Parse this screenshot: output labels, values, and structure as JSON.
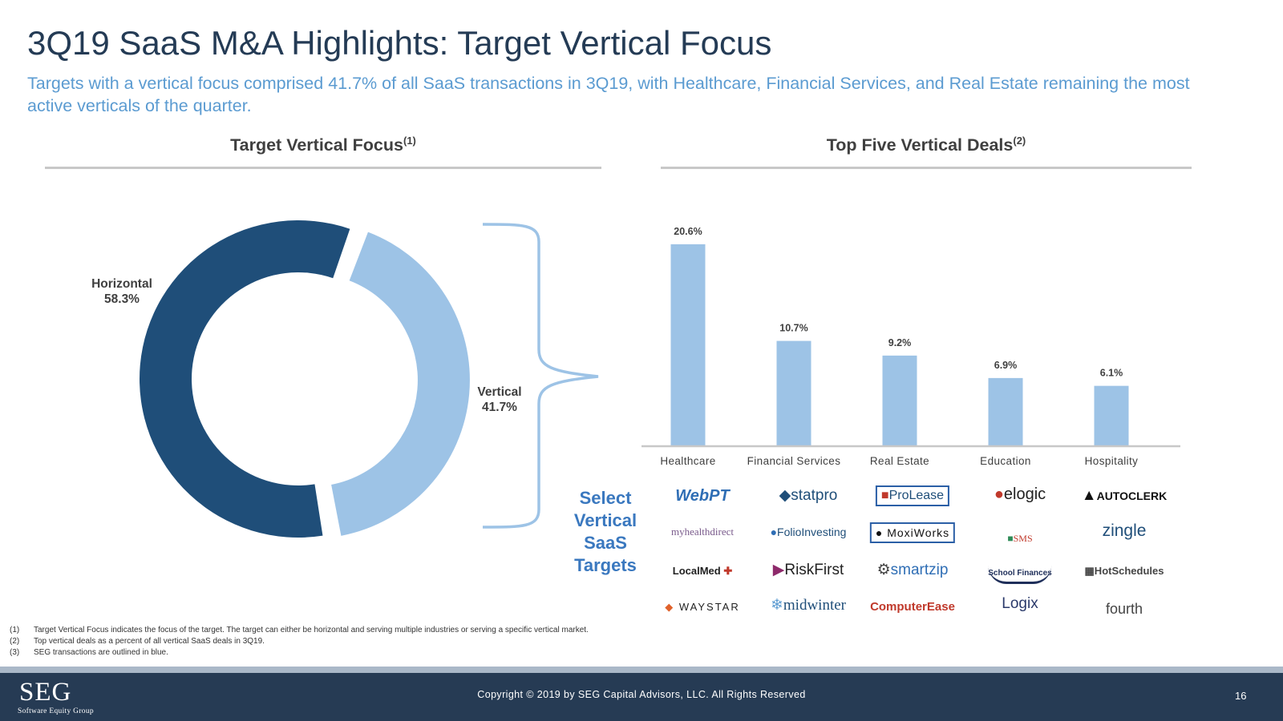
{
  "header": {
    "title": "3Q19 SaaS M&A Highlights: Target Vertical Focus",
    "subtitle": "Targets with a vertical focus comprised 41.7% of all SaaS transactions in 3Q19, with Healthcare, Financial Services, and Real Estate remaining the most active verticals of the quarter."
  },
  "left_section": {
    "title": "Target Vertical Focus",
    "sup": "(1)"
  },
  "right_section": {
    "title": "Top Five Vertical Deals",
    "sup": "(2)"
  },
  "colors": {
    "horizontal": "#1f4e79",
    "vertical": "#9dc3e6",
    "bar": "#9dc3e6",
    "accent": "#3a78bf",
    "footer": "#263b54"
  },
  "chart_data": [
    {
      "type": "pie",
      "variant": "donut",
      "title": "Target Vertical Focus",
      "labels": [
        "Horizontal",
        "Vertical"
      ],
      "values": [
        58.3,
        41.7
      ],
      "value_labels": [
        "58.3%",
        "41.7%"
      ]
    },
    {
      "type": "bar",
      "title": "Top Five Vertical Deals",
      "categories": [
        "Healthcare",
        "Financial Services",
        "Real Estate",
        "Education",
        "Hospitality"
      ],
      "values": [
        20.6,
        10.7,
        9.2,
        6.9,
        6.1
      ],
      "value_labels": [
        "20.6%",
        "10.7%",
        "9.2%",
        "6.9%",
        "6.1%"
      ],
      "unit": "%",
      "ylim": [
        0,
        21
      ]
    }
  ],
  "select_label": "Select Vertical SaaS Targets",
  "targets": [
    {
      "vertical": "Healthcare",
      "logos": [
        "WebPT",
        "myhealthdirect",
        "LocalMed",
        "WAYSTAR"
      ]
    },
    {
      "vertical": "Financial Services",
      "logos": [
        "statpro",
        "FolioInvesting",
        "RiskFirst",
        "midwinter"
      ]
    },
    {
      "vertical": "Real Estate",
      "logos": [
        "ProLease",
        "MoxiWorks",
        "smartzip",
        "ComputerEase"
      ]
    },
    {
      "vertical": "Education",
      "logos": [
        "elogic",
        "SMS",
        "School Finances",
        "Logix"
      ]
    },
    {
      "vertical": "Hospitality",
      "logos": [
        "AUTOCLERK",
        "zingle",
        "HotSchedules",
        "fourth"
      ]
    }
  ],
  "footnotes": [
    {
      "num": "(1)",
      "text": "Target Vertical Focus indicates the focus of the target. The target can either be horizontal and serving multiple industries or serving a specific vertical market."
    },
    {
      "num": "(2)",
      "text": "Top vertical deals as a percent of all vertical SaaS deals in 3Q19."
    },
    {
      "num": "(3)",
      "text": "SEG transactions are outlined in blue."
    }
  ],
  "footer": {
    "logo": "SEG",
    "tagline": "Software Equity Group",
    "copyright": "Copyright © 2019 by SEG Capital Advisors, LLC. All Rights Reserved",
    "page_number": "16"
  }
}
